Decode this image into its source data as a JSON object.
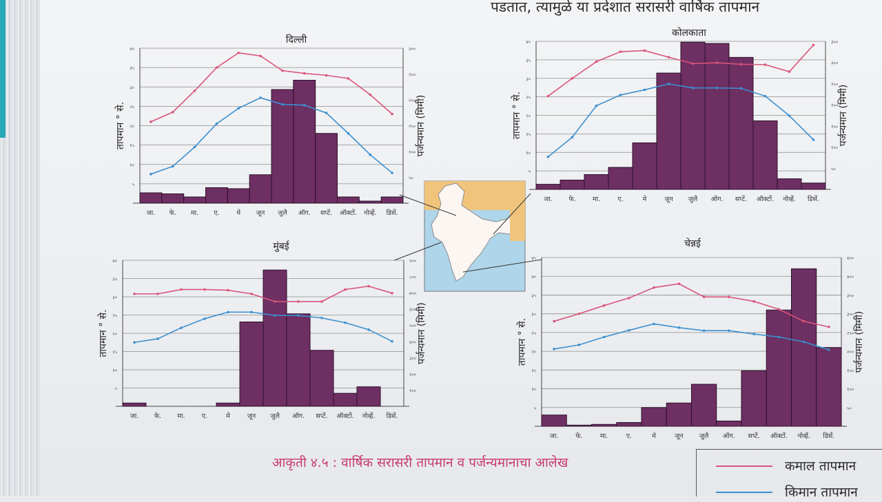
{
  "header_text": "पडतात, त्यामुळे या प्रदेशात सरासरी वार्षिक तापमान",
  "caption": "आकृती ४.५ : वार्षिक सरासरी तापमान व पर्जन्यमानाचा आलेख",
  "legend": [
    {
      "label": "कमाल तापमान",
      "color": "#d9547a"
    },
    {
      "label": "किमान तापमान",
      "color": "#3a8fd0"
    }
  ],
  "colors": {
    "bar": "#6e2f63",
    "max_temp": "#d9547a",
    "min_temp": "#3a8fd0"
  },
  "map": {
    "icon": "india-map-icon"
  },
  "chart_data": [
    {
      "type": "bar",
      "title": "दिल्ली",
      "ylabel": "तापमान ° से.",
      "y2label": "पर्जन्यमान (मिमी)",
      "categories": [
        "जा.",
        "फे.",
        "मा.",
        "ए.",
        "मे",
        "जून",
        "जुलै",
        "ऑग.",
        "सप्टें.",
        "ऑक्टों.",
        "नोव्हें.",
        "डिसें."
      ],
      "ylim": [
        0,
        40
      ],
      "y2lim": [
        0,
        300
      ],
      "yticks": [
        "५",
        "१०",
        "१५",
        "२०",
        "२५",
        "३०",
        "३५",
        "४०"
      ],
      "y2ticks": [
        "५०",
        "१००",
        "१५०",
        "२००",
        "२५०",
        "३००"
      ],
      "series": [
        {
          "name": "पर्जन्यमान",
          "type": "bar",
          "axis": "right",
          "values": [
            20,
            18,
            12,
            30,
            28,
            55,
            220,
            238,
            135,
            12,
            4,
            12
          ]
        },
        {
          "name": "कमाल तापमान",
          "type": "line",
          "axis": "left",
          "values": [
            21,
            23.5,
            29,
            35,
            38.8,
            38,
            34.2,
            33.5,
            33,
            32.2,
            28,
            23
          ]
        },
        {
          "name": "किमान तापमान",
          "type": "line",
          "axis": "left",
          "values": [
            7.5,
            9.5,
            14.5,
            20.5,
            24.5,
            27.2,
            25.5,
            25.3,
            23.3,
            18,
            12.5,
            7.8
          ]
        }
      ]
    },
    {
      "type": "bar",
      "title": "कोलकाता",
      "ylabel": "तापमान ° से.",
      "y2label": "पर्जन्यमान (मिमी)",
      "categories": [
        "जा.",
        "फे.",
        "मा.",
        "ए.",
        "मे",
        "जून",
        "जुलै",
        "ऑग.",
        "सप्टें.",
        "ऑक्टों.",
        "नोव्हें.",
        "डिसें."
      ],
      "ylim": [
        0,
        40
      ],
      "y2lim": [
        0,
        350
      ],
      "yticks": [
        "५",
        "१०",
        "१५",
        "२०",
        "२५",
        "३०",
        "३५",
        "४०"
      ],
      "y2ticks": [
        "५०",
        "१००",
        "१५०",
        "२००",
        "२५०",
        "३००",
        "३५०"
      ],
      "series": [
        {
          "name": "पर्जन्यमान",
          "type": "bar",
          "axis": "right",
          "values": [
            12,
            22,
            35,
            52,
            110,
            275,
            348,
            345,
            312,
            162,
            25,
            15
          ]
        },
        {
          "name": "कमाल तापमान",
          "type": "line",
          "axis": "left",
          "values": [
            25.2,
            30,
            34.5,
            37.2,
            37.5,
            35.7,
            34,
            34.2,
            33.8,
            33.7,
            31.8,
            39
          ]
        },
        {
          "name": "किमान तापमान",
          "type": "line",
          "axis": "left",
          "values": [
            8.8,
            14.1,
            22.6,
            25.5,
            26.9,
            28.5,
            27.4,
            27.4,
            27.3,
            25.2,
            19.9,
            13.4
          ]
        }
      ]
    },
    {
      "type": "bar",
      "title": "मुंबई",
      "ylabel": "तापमान ° से.",
      "y2label": "पर्जन्यमान (मिमी)",
      "categories": [
        "जा.",
        "फे.",
        "मा.",
        "ए.",
        "मे",
        "जून",
        "जुलै",
        "ऑग.",
        "सप्टें.",
        "ऑक्टों.",
        "नोव्हें.",
        "डिसें."
      ],
      "ylim": [
        0,
        40
      ],
      "y2lim": [
        0,
        900
      ],
      "yticks": [
        "५",
        "१०",
        "१५",
        "२०",
        "२५",
        "३०",
        "३५",
        "४०"
      ],
      "y2ticks": [
        "१००",
        "२००",
        "३००",
        "४००",
        "५००",
        "६००",
        "७००",
        "८००",
        "९००"
      ],
      "series": [
        {
          "name": "पर्जन्यमान",
          "type": "bar",
          "axis": "right",
          "values": [
            20,
            0,
            0,
            0,
            20,
            520,
            840,
            570,
            345,
            80,
            120,
            0
          ]
        },
        {
          "name": "कमाल तापमान",
          "type": "line",
          "axis": "left",
          "values": [
            30.8,
            30.8,
            32,
            32,
            31.8,
            30.8,
            28.7,
            28.7,
            28.7,
            32,
            32.9,
            31
          ]
        },
        {
          "name": "किमान तापमान",
          "type": "line",
          "axis": "left",
          "values": [
            17.5,
            18.5,
            21.5,
            24,
            25.8,
            25.8,
            24.9,
            24.9,
            24.2,
            22.9,
            21,
            17.8
          ]
        }
      ]
    },
    {
      "type": "bar",
      "title": "चेन्नई",
      "ylabel": "तापमान ° से.",
      "y2label": "पर्जन्यमान (मिमी)",
      "categories": [
        "जा.",
        "फे.",
        "मा.",
        "ए.",
        "मे",
        "जून",
        "जुलै",
        "ऑग.",
        "सप्टें.",
        "ऑक्टों.",
        "नोव्हें.",
        "डिसें."
      ],
      "ylim": [
        0,
        45
      ],
      "y2lim": [
        0,
        450
      ],
      "yticks": [
        "५",
        "१०",
        "१५",
        "२०",
        "२५",
        "३०",
        "३५",
        "४०",
        "४५"
      ],
      "y2ticks": [
        "५०",
        "१००",
        "१५०",
        "२००",
        "२५०",
        "३००",
        "३५०",
        "४००",
        "४५०"
      ],
      "series": [
        {
          "name": "पर्जन्यमान",
          "type": "bar",
          "axis": "right",
          "values": [
            30,
            3,
            5,
            10,
            50,
            62,
            112,
            14,
            148,
            310,
            420,
            210
          ]
        },
        {
          "name": "कमाल तापमान",
          "type": "line",
          "axis": "left",
          "values": [
            28,
            30,
            32.2,
            34.2,
            37,
            38,
            34.5,
            34.5,
            33.3,
            31.2,
            28,
            26.5
          ]
        },
        {
          "name": "किमान तापमान",
          "type": "line",
          "axis": "left",
          "values": [
            20.6,
            21.7,
            23.8,
            25.6,
            27.3,
            26.3,
            25.5,
            25.5,
            24.6,
            23.8,
            22.5,
            20.4
          ]
        }
      ]
    }
  ]
}
